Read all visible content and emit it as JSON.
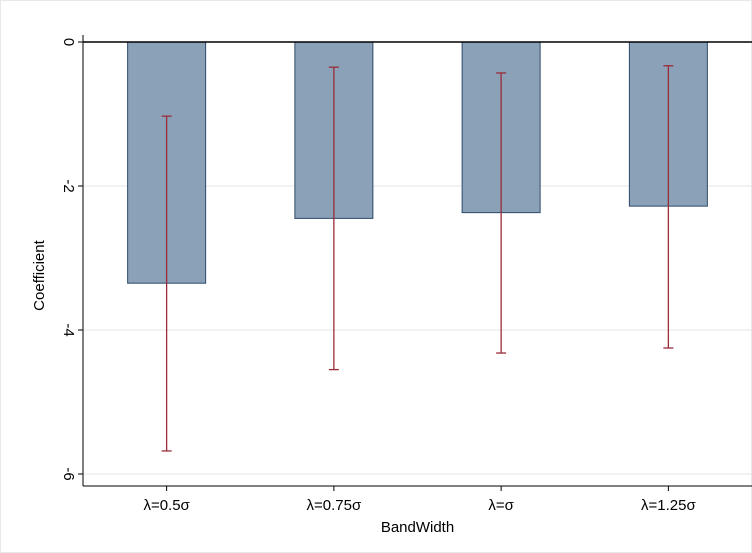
{
  "chart_data": {
    "type": "bar",
    "xlabel": "BandWidth",
    "ylabel": "Coefficient",
    "categories": [
      "λ=0.5σ",
      "λ=0.75σ",
      "λ=σ",
      "λ=1.25σ"
    ],
    "values": [
      -3.35,
      -2.45,
      -2.37,
      -2.28
    ],
    "ci_lower": [
      -5.68,
      -4.55,
      -4.32,
      -4.25
    ],
    "ci_upper": [
      -1.03,
      -0.35,
      -0.43,
      -0.33
    ],
    "ylim": [
      -6.15,
      0.15
    ],
    "yticks": [
      0,
      -2,
      -4,
      -6
    ],
    "ytick_labels": [
      "0",
      "-2",
      "-4",
      "-6"
    ],
    "grid": true,
    "colors": {
      "bar_fill": "#8aa1b7",
      "bar_edge": "#2e4a6b",
      "error_bar": "#9c2b3a"
    }
  }
}
